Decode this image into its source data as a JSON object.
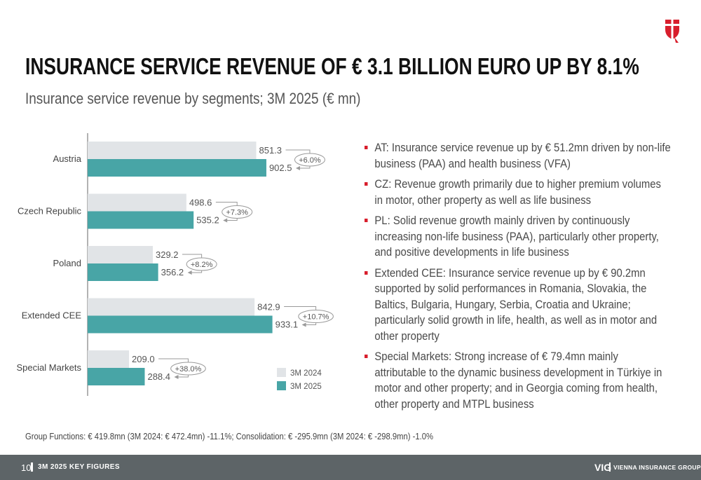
{
  "header": {
    "title": "INSURANCE SERVICE REVENUE OF € 3.1 BILLION EURO UP BY 8.1%",
    "subtitle": "Insurance service revenue by segments; 3M 2025 (€ mn)"
  },
  "chart_data": {
    "type": "bar",
    "orientation": "horizontal",
    "categories": [
      "Austria",
      "Czech Republic",
      "Poland",
      "Extended CEE",
      "Special Markets"
    ],
    "series": [
      {
        "name": "3M 2024",
        "values": [
          851.3,
          498.6,
          329.2,
          842.9,
          209.0
        ],
        "labels": [
          "851.3",
          "498.6",
          "329.2",
          "842.9",
          "209.0"
        ],
        "color": "#e1e4e7"
      },
      {
        "name": "3M 2025",
        "values": [
          902.5,
          535.2,
          356.2,
          933.1,
          288.4
        ],
        "labels": [
          "902.5",
          "535.2",
          "356.2",
          "933.1",
          "288.4"
        ],
        "color": "#48a5a6"
      }
    ],
    "growth_labels": [
      "+6.0%",
      "+7.3%",
      "+8.2%",
      "+10.7%",
      "+38.0%"
    ],
    "xlim": [
      0,
      1000
    ],
    "legend_position": "bottom-right",
    "grid": false
  },
  "bullets": [
    "AT: Insurance service revenue up by € 51.2mn driven by non-life business (PAA) and health business (VFA)",
    "CZ: Revenue growth primarily due to higher premium volumes in motor, other property as well as life business",
    "PL: Solid revenue growth mainly driven by continuously increasing non-life business (PAA), particularly other property, and positive developments in life business",
    "Extended CEE: Insurance service revenue up by € 90.2mn supported by solid performances in Romania, Slovakia, the Baltics, Bulgaria, Hungary, Serbia, Croatia and Ukraine; particularly solid growth in life, health, as well as in motor and other property",
    "Special Markets: Strong increase of € 79.4mn mainly attributable to the dynamic business development in Türkiye in motor and other property; and in Georgia coming from health, other property and MTPL business"
  ],
  "footnote": "Group Functions: € 419.8mn (3M 2024: € 472.4mn) -11.1%; Consolidation: € -295.9mn (3M 2024: € -298.9mn) -1.0%",
  "footer": {
    "page_number": "10",
    "section_title": "3M 2025 KEY FIGURES",
    "brand": "VIG",
    "brand_name": "VIENNA INSURANCE GROUP"
  },
  "colors": {
    "accent_red": "#d81e2c",
    "teal": "#48a5a6",
    "light_gray": "#e1e4e7",
    "footer_bg": "#5d6467"
  },
  "icons": {
    "logo": "vig-shield-logo-icon"
  }
}
